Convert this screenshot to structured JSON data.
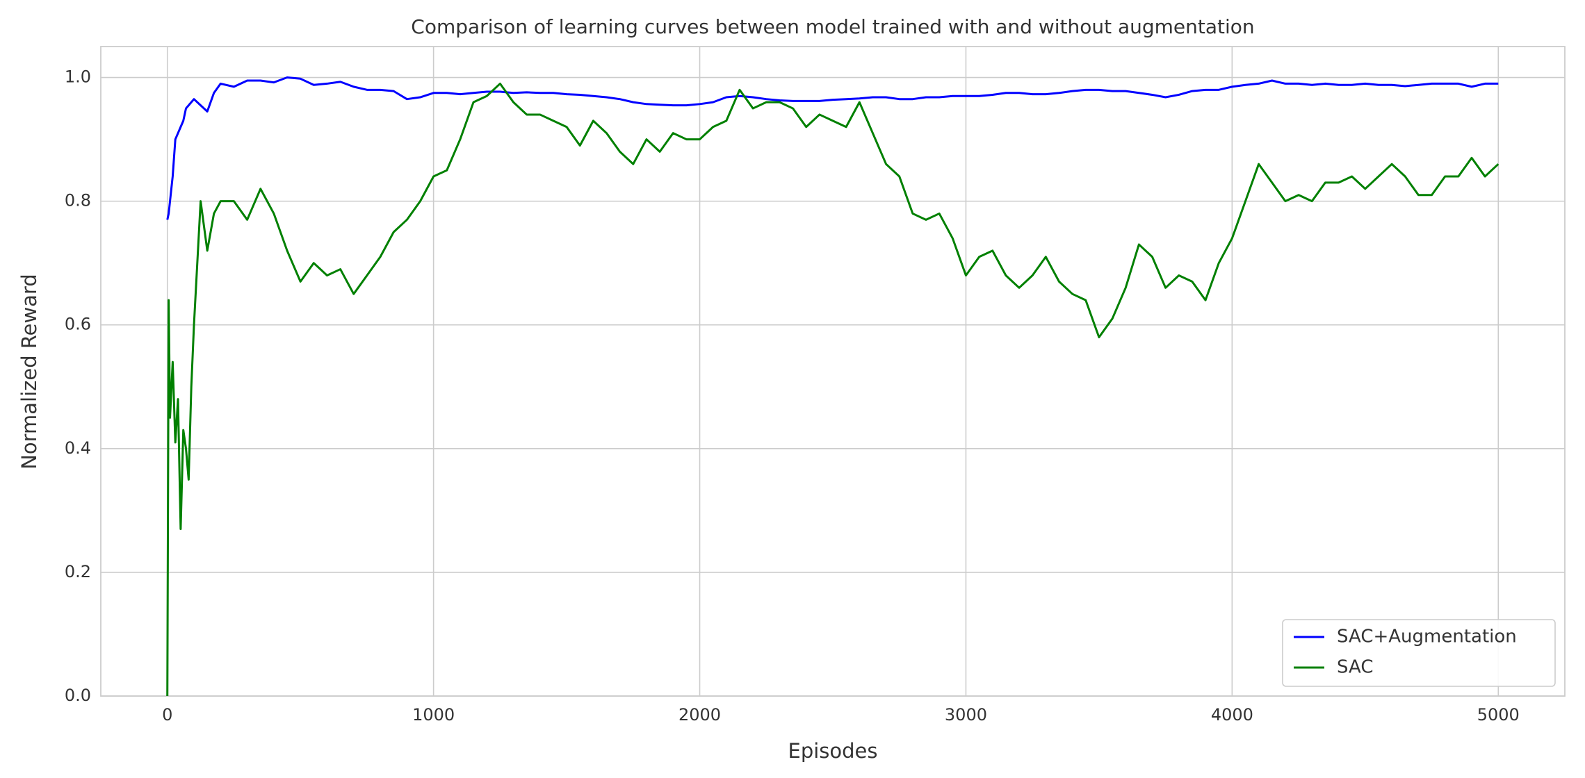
{
  "chart_data": {
    "type": "line",
    "title": "Comparison of learning curves between model trained with and without augmentation",
    "xlabel": "Episodes",
    "ylabel": "Normalized Reward",
    "x": [
      0,
      5,
      10,
      20,
      30,
      40,
      50,
      60,
      70,
      80,
      90,
      100,
      125,
      150,
      175,
      200,
      250,
      300,
      350,
      400,
      450,
      500,
      550,
      600,
      650,
      700,
      750,
      800,
      850,
      900,
      950,
      1000,
      1050,
      1100,
      1150,
      1200,
      1250,
      1300,
      1350,
      1400,
      1450,
      1500,
      1550,
      1600,
      1650,
      1700,
      1750,
      1800,
      1850,
      1900,
      1950,
      2000,
      2050,
      2100,
      2150,
      2200,
      2250,
      2300,
      2350,
      2400,
      2450,
      2500,
      2550,
      2600,
      2650,
      2700,
      2750,
      2800,
      2850,
      2900,
      2950,
      3000,
      3050,
      3100,
      3150,
      3200,
      3250,
      3300,
      3350,
      3400,
      3450,
      3500,
      3550,
      3600,
      3650,
      3700,
      3750,
      3800,
      3850,
      3900,
      3950,
      4000,
      4050,
      4100,
      4150,
      4200,
      4250,
      4300,
      4350,
      4400,
      4450,
      4500,
      4550,
      4600,
      4650,
      4700,
      4750,
      4800,
      4850,
      4900,
      4950,
      5000
    ],
    "series": [
      {
        "name": "SAC+Augmentation",
        "color": "#0000ff",
        "values": [
          0.77,
          0.78,
          0.8,
          0.84,
          0.9,
          0.91,
          0.92,
          0.93,
          0.95,
          0.955,
          0.96,
          0.965,
          0.955,
          0.945,
          0.975,
          0.99,
          0.985,
          0.995,
          0.995,
          0.992,
          1.0,
          0.998,
          0.988,
          0.99,
          0.993,
          0.985,
          0.98,
          0.98,
          0.978,
          0.965,
          0.968,
          0.975,
          0.975,
          0.973,
          0.975,
          0.977,
          0.977,
          0.975,
          0.976,
          0.975,
          0.975,
          0.973,
          0.972,
          0.97,
          0.968,
          0.965,
          0.96,
          0.957,
          0.956,
          0.955,
          0.955,
          0.957,
          0.96,
          0.968,
          0.97,
          0.968,
          0.965,
          0.963,
          0.962,
          0.962,
          0.962,
          0.964,
          0.965,
          0.966,
          0.968,
          0.968,
          0.965,
          0.965,
          0.968,
          0.968,
          0.97,
          0.97,
          0.97,
          0.972,
          0.975,
          0.975,
          0.973,
          0.973,
          0.975,
          0.978,
          0.98,
          0.98,
          0.978,
          0.978,
          0.975,
          0.972,
          0.968,
          0.972,
          0.978,
          0.98,
          0.98,
          0.985,
          0.988,
          0.99,
          0.995,
          0.99,
          0.99,
          0.988,
          0.99,
          0.988,
          0.988,
          0.99,
          0.988,
          0.988,
          0.986,
          0.988,
          0.99,
          0.99,
          0.99,
          0.985,
          0.99,
          0.99
        ]
      },
      {
        "name": "SAC",
        "color": "#008000",
        "values": [
          0.0,
          0.64,
          0.45,
          0.54,
          0.41,
          0.48,
          0.27,
          0.43,
          0.4,
          0.35,
          0.5,
          0.6,
          0.8,
          0.72,
          0.78,
          0.8,
          0.8,
          0.77,
          0.82,
          0.78,
          0.72,
          0.67,
          0.7,
          0.68,
          0.69,
          0.65,
          0.68,
          0.71,
          0.75,
          0.77,
          0.8,
          0.84,
          0.85,
          0.9,
          0.96,
          0.97,
          0.99,
          0.96,
          0.94,
          0.94,
          0.93,
          0.92,
          0.89,
          0.93,
          0.91,
          0.88,
          0.86,
          0.9,
          0.88,
          0.91,
          0.9,
          0.9,
          0.92,
          0.93,
          0.98,
          0.95,
          0.96,
          0.96,
          0.95,
          0.92,
          0.94,
          0.93,
          0.92,
          0.96,
          0.91,
          0.86,
          0.84,
          0.78,
          0.77,
          0.78,
          0.74,
          0.68,
          0.71,
          0.72,
          0.68,
          0.66,
          0.68,
          0.71,
          0.67,
          0.65,
          0.64,
          0.58,
          0.61,
          0.66,
          0.73,
          0.71,
          0.66,
          0.68,
          0.67,
          0.64,
          0.7,
          0.74,
          0.8,
          0.86,
          0.83,
          0.8,
          0.81,
          0.8,
          0.83,
          0.83,
          0.84,
          0.82,
          0.84,
          0.86,
          0.84,
          0.81,
          0.81,
          0.84,
          0.84,
          0.87,
          0.84,
          0.86
        ]
      }
    ],
    "xlim": [
      -250,
      5250
    ],
    "ylim": [
      0,
      1.05
    ],
    "xticks": [
      0,
      1000,
      2000,
      3000,
      4000,
      5000
    ],
    "yticks": [
      {
        "value": 0,
        "label": "0.0"
      },
      {
        "value": 0.2,
        "label": "0.2"
      },
      {
        "value": 0.4,
        "label": "0.4"
      },
      {
        "value": 0.6,
        "label": "0.6"
      },
      {
        "value": 0.8,
        "label": "0.8"
      },
      {
        "value": 1,
        "label": "1.0"
      }
    ],
    "grid": true,
    "legend": "lower right"
  }
}
